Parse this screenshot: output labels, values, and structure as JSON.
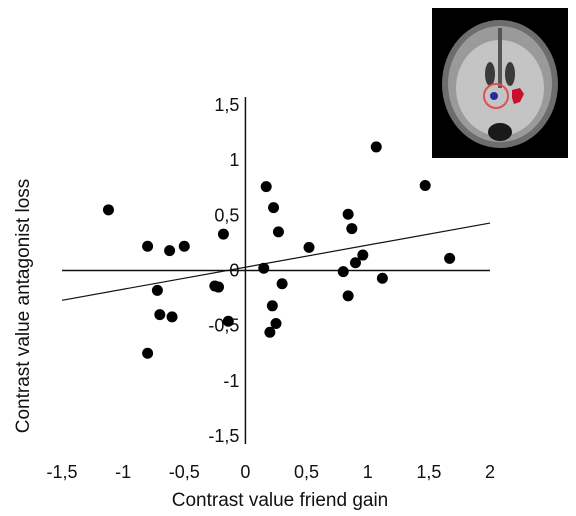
{
  "chart_data": {
    "type": "scatter",
    "title": "",
    "xlabel": "Contrast value friend gain",
    "ylabel": "Contrast value antagonist loss",
    "xlim": [
      -1.5,
      2
    ],
    "ylim": [
      -1.5,
      1.5
    ],
    "x_ticks": [
      -1.5,
      -1,
      -0.5,
      0,
      0.5,
      1,
      1.5,
      2
    ],
    "y_ticks": [
      -1.5,
      -1,
      -0.5,
      0,
      0.5,
      1,
      1.5
    ],
    "x_tick_labels": [
      "-1,5",
      "-1",
      "-0,5",
      "0",
      "0,5",
      "1",
      "1,5",
      "2"
    ],
    "y_tick_labels": [
      "-1,5",
      "-1",
      "-0,5",
      "0",
      "0,5",
      "1",
      "1,5"
    ],
    "grid": false,
    "points": [
      {
        "x": -1.12,
        "y": 0.55
      },
      {
        "x": -0.8,
        "y": 0.22
      },
      {
        "x": -0.72,
        "y": -0.18
      },
      {
        "x": -0.7,
        "y": -0.4
      },
      {
        "x": -0.62,
        "y": 0.18
      },
      {
        "x": -0.6,
        "y": -0.42
      },
      {
        "x": -0.5,
        "y": 0.22
      },
      {
        "x": -0.8,
        "y": -0.75
      },
      {
        "x": -0.25,
        "y": -0.14
      },
      {
        "x": -0.22,
        "y": -0.15
      },
      {
        "x": -0.18,
        "y": 0.33
      },
      {
        "x": -0.14,
        "y": -0.46
      },
      {
        "x": 0.15,
        "y": 0.02
      },
      {
        "x": 0.17,
        "y": 0.76
      },
      {
        "x": 0.2,
        "y": -0.56
      },
      {
        "x": 0.22,
        "y": -0.32
      },
      {
        "x": 0.23,
        "y": 0.57
      },
      {
        "x": 0.25,
        "y": -0.48
      },
      {
        "x": 0.27,
        "y": 0.35
      },
      {
        "x": 0.3,
        "y": -0.12
      },
      {
        "x": 0.52,
        "y": 0.21
      },
      {
        "x": 0.8,
        "y": -0.01
      },
      {
        "x": 0.84,
        "y": 0.51
      },
      {
        "x": 0.84,
        "y": -0.23
      },
      {
        "x": 0.87,
        "y": 0.38
      },
      {
        "x": 0.9,
        "y": 0.07
      },
      {
        "x": 0.96,
        "y": 0.14
      },
      {
        "x": 1.07,
        "y": 1.12
      },
      {
        "x": 1.12,
        "y": -0.07
      },
      {
        "x": 1.47,
        "y": 0.77
      },
      {
        "x": 1.67,
        "y": 0.11
      }
    ],
    "trendline": {
      "x": [
        -1.5,
        2
      ],
      "y": [
        -0.27,
        0.43
      ]
    }
  },
  "brain_inset": {
    "icon": "brain-coronal-slice-icon",
    "highlight_colors": {
      "ring": "#e05050",
      "cluster_red": "#c8102e",
      "cluster_blue": "#2a2aa0"
    }
  }
}
